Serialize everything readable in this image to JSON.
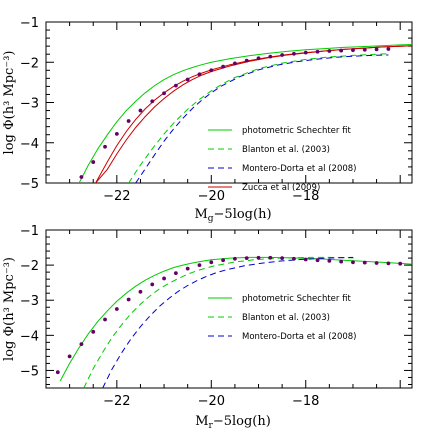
{
  "chart_data": [
    {
      "type": "line",
      "panel": "top",
      "xlabel_main": "M",
      "xlabel_sub": "g",
      "xlabel_rest": "−5log(h)",
      "ylabel": "log Φ(h³ Mpc⁻³)",
      "xlim": [
        -23.5,
        -15.75
      ],
      "ylim": [
        -5,
        -1
      ],
      "xticks": [
        -22,
        -20,
        -18
      ],
      "xtick_labels": [
        "−22",
        "−20",
        "−18"
      ],
      "yticks": [
        -5,
        -4,
        -3,
        -2,
        -1
      ],
      "ytick_labels": [
        "−5",
        "−4",
        "−3",
        "−2",
        "−1"
      ],
      "legend_position": "lower-right",
      "series": [
        {
          "name": "photometric Schechter fit",
          "style": "solid",
          "color": "#00cc00",
          "x": [
            -22.8,
            -22.6,
            -22.4,
            -22.2,
            -22.0,
            -21.8,
            -21.6,
            -21.4,
            -21.2,
            -21.0,
            -20.8,
            -20.6,
            -20.4,
            -20.2,
            -20.0,
            -19.6,
            -19.2,
            -18.8,
            -18.4,
            -18.0,
            -17.6,
            -17.2,
            -16.8,
            -16.4,
            -16.0,
            -15.75
          ],
          "y": [
            -5.0,
            -4.55,
            -4.15,
            -3.8,
            -3.48,
            -3.2,
            -2.97,
            -2.76,
            -2.58,
            -2.43,
            -2.31,
            -2.21,
            -2.13,
            -2.06,
            -2.0,
            -1.91,
            -1.84,
            -1.78,
            -1.73,
            -1.69,
            -1.66,
            -1.63,
            -1.61,
            -1.59,
            -1.57,
            -1.56
          ]
        },
        {
          "name": "Blanton et al. (2003)",
          "style": "dashed",
          "color": "#00cc00",
          "x": [
            -21.75,
            -21.5,
            -21.25,
            -21.0,
            -20.75,
            -20.5,
            -20.25,
            -20.0,
            -19.75,
            -19.5,
            -19.0,
            -18.5,
            -18.0,
            -17.5,
            -17.0,
            -16.5,
            -16.25
          ],
          "y": [
            -5.0,
            -4.55,
            -4.15,
            -3.78,
            -3.45,
            -3.17,
            -2.92,
            -2.71,
            -2.53,
            -2.38,
            -2.16,
            -2.02,
            -1.93,
            -1.87,
            -1.83,
            -1.8,
            -1.79
          ]
        },
        {
          "name": "Montero-Dorta et al (2008)",
          "style": "dashed",
          "color": "#0000cc",
          "x": [
            -21.6,
            -21.4,
            -21.2,
            -21.0,
            -20.8,
            -20.6,
            -20.4,
            -20.2,
            -20.0,
            -19.8,
            -19.4,
            -19.0,
            -18.6,
            -18.2,
            -17.8,
            -17.4,
            -17.0,
            -16.6,
            -16.25
          ],
          "y": [
            -5.0,
            -4.65,
            -4.3,
            -3.96,
            -3.66,
            -3.39,
            -3.15,
            -2.94,
            -2.76,
            -2.6,
            -2.36,
            -2.19,
            -2.07,
            -1.99,
            -1.93,
            -1.88,
            -1.85,
            -1.83,
            -1.82
          ]
        },
        {
          "name": "Zucca et al (2009)",
          "style": "solid",
          "color": "#cc0000",
          "band": true,
          "x": [
            -22.45,
            -22.2,
            -22.0,
            -21.8,
            -21.6,
            -21.4,
            -21.2,
            -21.0,
            -20.8,
            -20.6,
            -20.4,
            -20.2,
            -20.0,
            -19.6,
            -19.2,
            -18.8,
            -18.4,
            -18.0,
            -17.6,
            -17.2,
            -16.8,
            -16.4,
            -16.0,
            -15.75
          ],
          "y_upper": [
            -5.0,
            -4.47,
            -4.07,
            -3.72,
            -3.42,
            -3.16,
            -2.94,
            -2.76,
            -2.6,
            -2.47,
            -2.36,
            -2.27,
            -2.19,
            -2.06,
            -1.96,
            -1.88,
            -1.81,
            -1.76,
            -1.72,
            -1.68,
            -1.65,
            -1.62,
            -1.6,
            -1.59
          ],
          "y_lower": [
            -5.0,
            -4.66,
            -4.28,
            -3.93,
            -3.62,
            -3.35,
            -3.11,
            -2.9,
            -2.72,
            -2.56,
            -2.43,
            -2.32,
            -2.23,
            -2.09,
            -1.98,
            -1.89,
            -1.82,
            -1.77,
            -1.72,
            -1.68,
            -1.65,
            -1.62,
            -1.6,
            -1.59
          ]
        },
        {
          "name": "",
          "style": "points",
          "color": "#660066",
          "x": [
            -22.75,
            -22.5,
            -22.25,
            -22.0,
            -21.75,
            -21.5,
            -21.25,
            -21.0,
            -20.75,
            -20.5,
            -20.25,
            -20.0,
            -19.75,
            -19.5,
            -19.25,
            -19.0,
            -18.75,
            -18.5,
            -18.25,
            -18.0,
            -17.75,
            -17.5,
            -17.25,
            -17.0,
            -16.75,
            -16.5,
            -16.25
          ],
          "y": [
            -4.85,
            -4.48,
            -4.1,
            -3.78,
            -3.46,
            -3.2,
            -2.97,
            -2.77,
            -2.58,
            -2.43,
            -2.3,
            -2.2,
            -2.11,
            -2.03,
            -1.96,
            -1.9,
            -1.86,
            -1.82,
            -1.79,
            -1.76,
            -1.74,
            -1.72,
            -1.71,
            -1.7,
            -1.69,
            -1.68,
            -1.67
          ]
        }
      ]
    },
    {
      "type": "line",
      "panel": "bottom",
      "xlabel_main": "M",
      "xlabel_sub": "r",
      "xlabel_rest": "−5log(h)",
      "ylabel": "log Φ(h³ Mpc⁻³)",
      "xlim": [
        -23.5,
        -15.75
      ],
      "ylim": [
        -5.5,
        -1
      ],
      "xticks": [
        -22,
        -20,
        -18
      ],
      "xtick_labels": [
        "−22",
        "−20",
        "−18"
      ],
      "yticks": [
        -5,
        -4,
        -3,
        -2,
        -1
      ],
      "ytick_labels": [
        "−5",
        "−4",
        "−3",
        "−2",
        "−1"
      ],
      "legend_position": "lower-right",
      "series": [
        {
          "name": "photometric Schechter fit",
          "style": "solid",
          "color": "#00cc00",
          "x": [
            -23.2,
            -23.0,
            -22.8,
            -22.6,
            -22.4,
            -22.2,
            -22.0,
            -21.8,
            -21.6,
            -21.4,
            -21.2,
            -21.0,
            -20.8,
            -20.6,
            -20.4,
            -20.2,
            -20.0,
            -19.6,
            -19.2,
            -18.8,
            -18.4,
            -18.0,
            -17.6,
            -17.2,
            -16.8,
            -16.4,
            -16.0,
            -15.75
          ],
          "y": [
            -5.3,
            -4.8,
            -4.35,
            -3.95,
            -3.6,
            -3.3,
            -3.03,
            -2.8,
            -2.6,
            -2.43,
            -2.29,
            -2.17,
            -2.07,
            -2.0,
            -1.94,
            -1.89,
            -1.85,
            -1.8,
            -1.78,
            -1.78,
            -1.79,
            -1.81,
            -1.83,
            -1.86,
            -1.89,
            -1.92,
            -1.95,
            -1.97
          ]
        },
        {
          "name": "Blanton et al. (2003)",
          "style": "dashed",
          "color": "#00cc00",
          "x": [
            -22.7,
            -22.5,
            -22.3,
            -22.1,
            -21.9,
            -21.7,
            -21.5,
            -21.3,
            -21.1,
            -20.9,
            -20.7,
            -20.5,
            -20.3,
            -20.1,
            -19.9,
            -19.5,
            -19.1,
            -18.7,
            -18.3,
            -17.9,
            -17.5,
            -17.1,
            -16.9
          ],
          "y": [
            -5.5,
            -4.95,
            -4.48,
            -4.06,
            -3.7,
            -3.38,
            -3.11,
            -2.88,
            -2.68,
            -2.52,
            -2.38,
            -2.26,
            -2.16,
            -2.08,
            -2.01,
            -1.91,
            -1.85,
            -1.81,
            -1.79,
            -1.78,
            -1.78,
            -1.79,
            -1.8
          ]
        },
        {
          "name": "Montero-Dorta et al (2008)",
          "style": "dashed",
          "color": "#0000cc",
          "x": [
            -22.3,
            -22.1,
            -21.9,
            -21.7,
            -21.5,
            -21.3,
            -21.1,
            -20.9,
            -20.7,
            -20.5,
            -20.3,
            -20.1,
            -19.9,
            -19.7,
            -19.3,
            -18.9,
            -18.5,
            -18.1,
            -17.7,
            -17.3,
            -17.0
          ],
          "y": [
            -5.5,
            -4.96,
            -4.5,
            -4.1,
            -3.75,
            -3.45,
            -3.18,
            -2.95,
            -2.75,
            -2.58,
            -2.44,
            -2.32,
            -2.22,
            -2.14,
            -2.02,
            -1.94,
            -1.88,
            -1.84,
            -1.81,
            -1.79,
            -1.78
          ]
        },
        {
          "name": "",
          "style": "points",
          "color": "#660066",
          "x": [
            -23.25,
            -23.0,
            -22.75,
            -22.5,
            -22.25,
            -22.0,
            -21.75,
            -21.5,
            -21.25,
            -21.0,
            -20.75,
            -20.5,
            -20.25,
            -20.0,
            -19.75,
            -19.5,
            -19.25,
            -19.0,
            -18.75,
            -18.5,
            -18.25,
            -18.0,
            -17.75,
            -17.5,
            -17.25,
            -17.0,
            -16.75,
            -16.5,
            -16.25,
            -16.0
          ],
          "y": [
            -5.05,
            -4.6,
            -4.25,
            -3.9,
            -3.55,
            -3.25,
            -2.98,
            -2.76,
            -2.55,
            -2.38,
            -2.23,
            -2.1,
            -2.0,
            -1.92,
            -1.86,
            -1.82,
            -1.8,
            -1.79,
            -1.79,
            -1.8,
            -1.82,
            -1.84,
            -1.86,
            -1.88,
            -1.9,
            -1.92,
            -1.93,
            -1.94,
            -1.95,
            -1.96
          ]
        }
      ]
    }
  ]
}
